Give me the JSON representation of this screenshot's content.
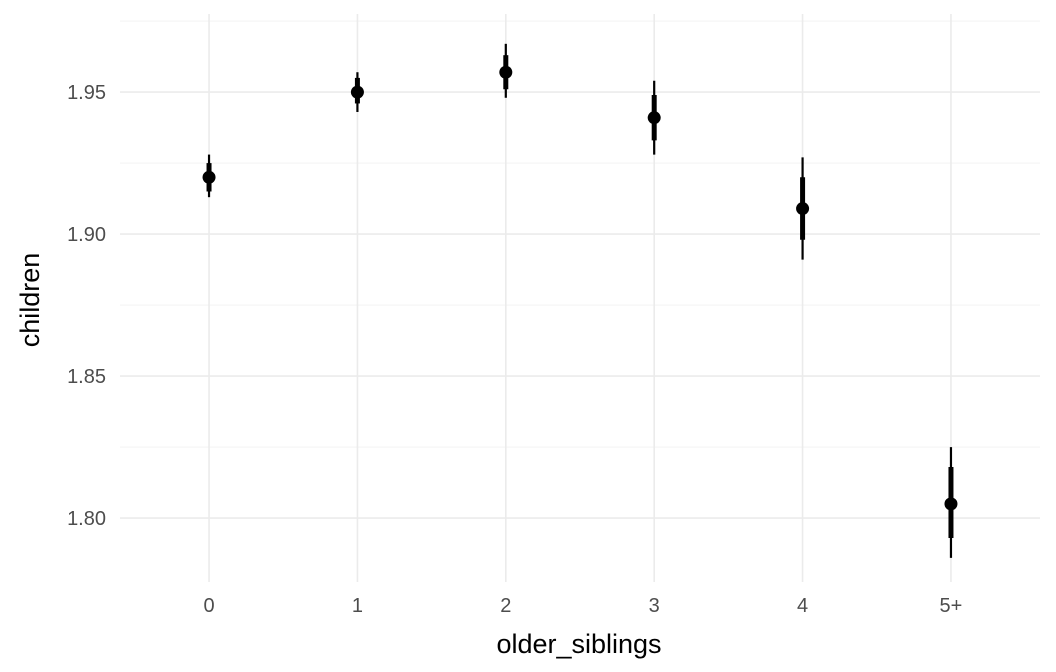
{
  "chart_data": {
    "type": "scatter",
    "xlabel": "older_siblings",
    "ylabel": "children",
    "categories": [
      "0",
      "1",
      "2",
      "3",
      "4",
      "5+"
    ],
    "series": [
      {
        "values": [
          1.92,
          1.95,
          1.957,
          1.941,
          1.909,
          1.805
        ],
        "interval_inner": [
          [
            1.915,
            1.925
          ],
          [
            1.946,
            1.955
          ],
          [
            1.951,
            1.963
          ],
          [
            1.933,
            1.949
          ],
          [
            1.898,
            1.92
          ],
          [
            1.793,
            1.818
          ]
        ],
        "interval_outer": [
          [
            1.913,
            1.928
          ],
          [
            1.943,
            1.957
          ],
          [
            1.948,
            1.967
          ],
          [
            1.928,
            1.954
          ],
          [
            1.891,
            1.927
          ],
          [
            1.786,
            1.825
          ]
        ]
      }
    ],
    "ylim": [
      1.7775,
      1.9775
    ],
    "yticks": [
      "1.80",
      "1.85",
      "1.90",
      "1.95"
    ],
    "grid": true,
    "legend": "none",
    "colors": {
      "point": "#000000",
      "grid_major": "#ebebeb",
      "grid_minor": "#f5f5f5"
    }
  }
}
